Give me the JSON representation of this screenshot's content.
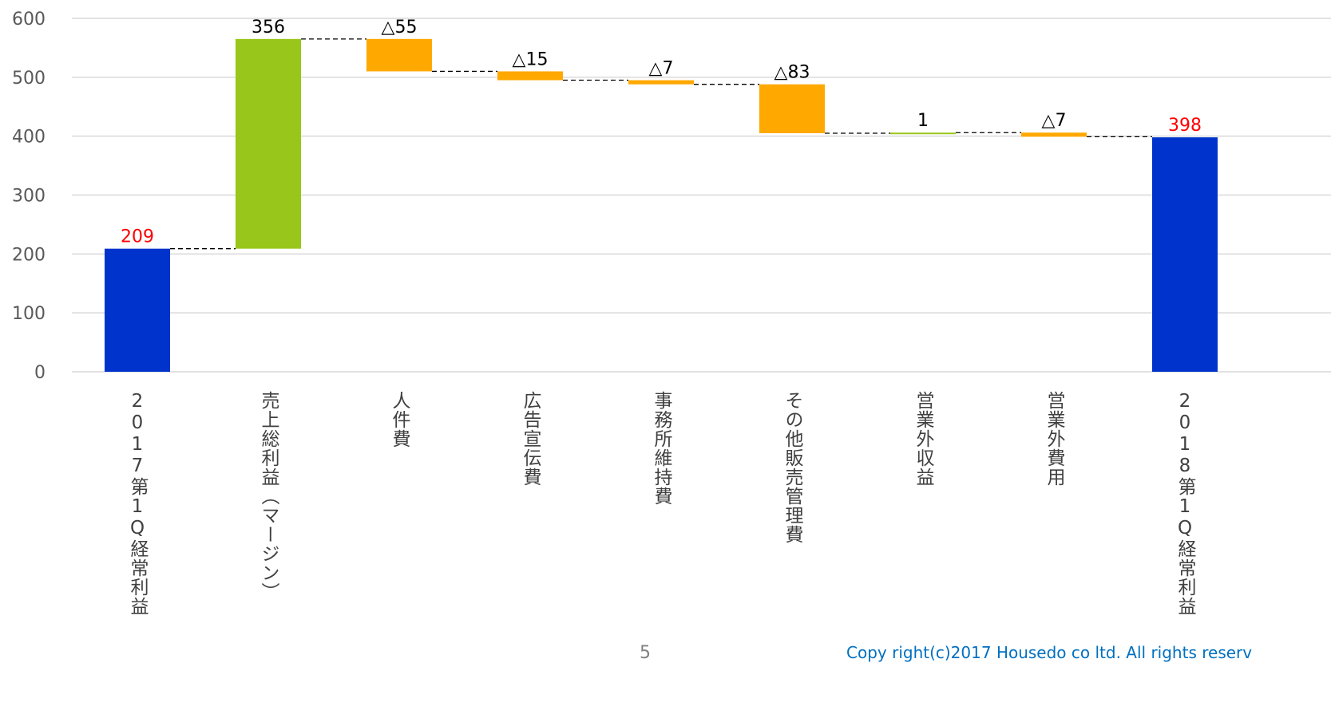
{
  "chart_data": {
    "type": "waterfall",
    "categories": [
      "2017第1Q経常利益",
      "売上総利益（マージン）",
      "人件費",
      "広告宣伝費",
      "事務所維持費",
      "その他販売管理費",
      "営業外収益",
      "営業外費用",
      "2018第1Q経常利益"
    ],
    "values": [
      209,
      356,
      -55,
      -15,
      -7,
      -83,
      1,
      -7,
      398
    ],
    "value_labels": [
      "209",
      "356",
      "△55",
      "△15",
      "△7",
      "△83",
      "1",
      "△7",
      "398"
    ],
    "is_total": [
      true,
      false,
      false,
      false,
      false,
      false,
      false,
      false,
      true
    ],
    "colors": [
      "#0033cc",
      "#99c61a",
      "#ffa800",
      "#ffa800",
      "#ffa800",
      "#ffa800",
      "#99c61a",
      "#ffa800",
      "#0033cc"
    ],
    "label_colors": [
      "#ff0000",
      "#000000",
      "#000000",
      "#000000",
      "#000000",
      "#000000",
      "#000000",
      "#000000",
      "#ff0000"
    ],
    "ylim": [
      0,
      600
    ],
    "yticks": [
      0,
      100,
      200,
      300,
      400,
      500,
      600
    ],
    "grid": true
  },
  "footer": {
    "page_number": "5",
    "copyright": "Copy right(c)2017 Housedo co ltd. All rights reserv"
  }
}
